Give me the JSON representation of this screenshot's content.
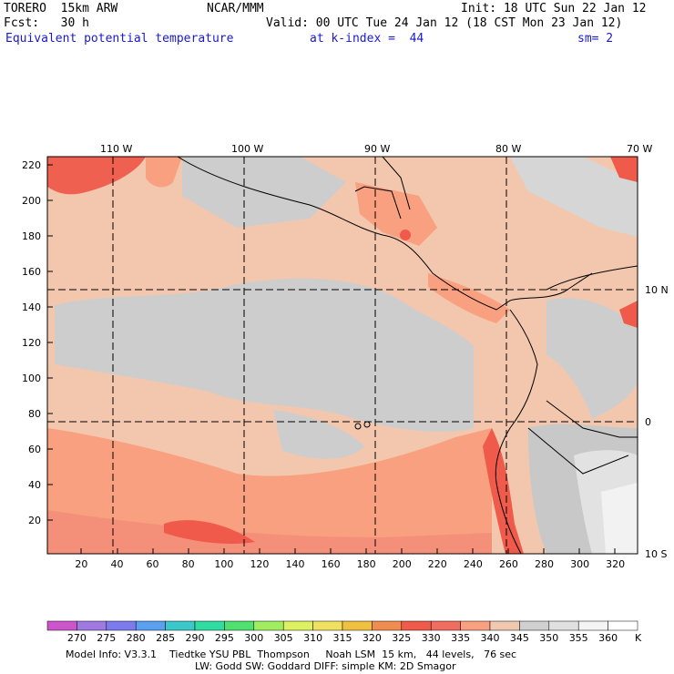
{
  "header": {
    "model": "TORERO  15km ARW",
    "center": "NCAR/MMM",
    "init": "Init: 18 UTC Sun 22 Jan 12",
    "fcst": "Fcst:   30 h",
    "valid": "Valid: 00 UTC Tue 24 Jan 12 (18 CST Mon 23 Jan 12)",
    "field": "Equivalent potential temperature",
    "level": "at k-index =  44",
    "smooth": "sm= 2"
  },
  "map": {
    "lon_labels": [
      "110 W",
      "100 W",
      "90 W",
      "80 W",
      "70 W"
    ],
    "lat_labels": [
      "10 N",
      "0",
      "10 S"
    ],
    "y_ticks": [
      "220",
      "200",
      "180",
      "160",
      "140",
      "120",
      "100",
      "80",
      "60",
      "40",
      "20"
    ],
    "x_ticks": [
      "20",
      "40",
      "60",
      "80",
      "100",
      "120",
      "140",
      "160",
      "180",
      "200",
      "220",
      "240",
      "260",
      "280",
      "300",
      "320"
    ]
  },
  "colorbar": {
    "unit": "K",
    "labels": [
      "270",
      "275",
      "280",
      "285",
      "290",
      "295",
      "300",
      "305",
      "310",
      "315",
      "320",
      "325",
      "330",
      "335",
      "340",
      "345",
      "350",
      "355",
      "360"
    ],
    "colors": [
      "#cc55cc",
      "#a07ae0",
      "#7b7bee",
      "#5aa0ee",
      "#3cc8c8",
      "#30dca0",
      "#50e070",
      "#a0ee60",
      "#dcf060",
      "#f0e060",
      "#f0c040",
      "#f08c50",
      "#f05a4a",
      "#f06e60",
      "#f8a080",
      "#f0c8b0",
      "#d0d0d0",
      "#e0e0e0",
      "#f4f4f4",
      "#ffffff"
    ]
  },
  "footer": {
    "line1": "Model Info: V3.3.1    Tiedtke YSU PBL  Thompson     Noah LSM  15 km,   44 levels,   76 sec",
    "line2": "LW: Godd SW: Goddard DIFF: simple KM: 2D Smagor"
  }
}
